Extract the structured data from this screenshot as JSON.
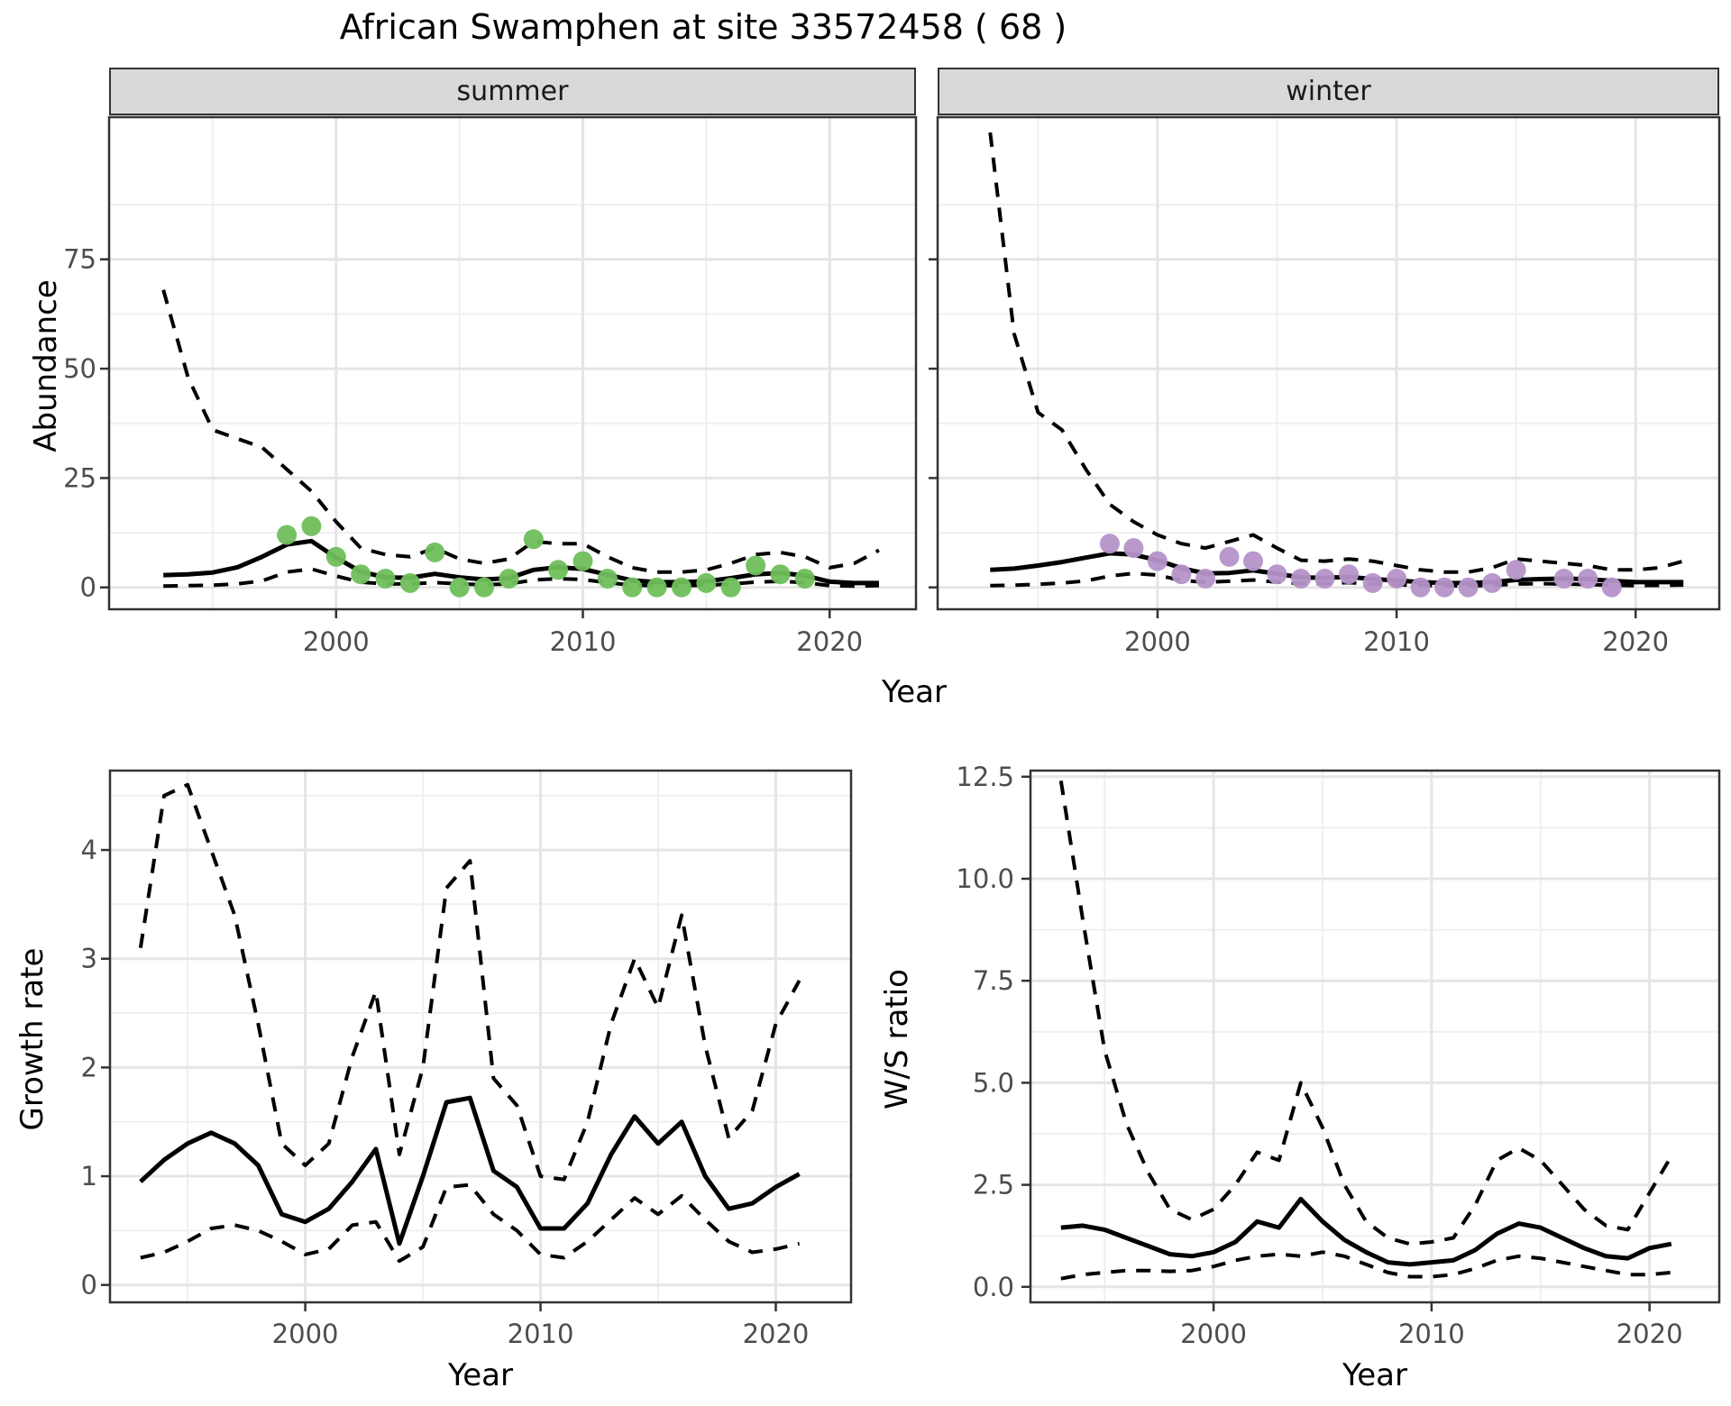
{
  "title": "African Swamphen at site 33572458 ( 68 )",
  "colors": {
    "summer_points": "#6fbf5b",
    "winter_points": "#b594c9",
    "line": "#000000",
    "grid_major": "#e5e5e5",
    "grid_minor": "#efefef",
    "strip_bg": "#d9d9d9",
    "panel_border": "#333333",
    "axis_text": "#4d4d4d"
  },
  "chart_data": [
    {
      "id": "abundance_summer",
      "type": "line",
      "facet_label": "summer",
      "xlabel": "Year",
      "ylabel": "Abundance",
      "xlim": [
        1990.8,
        2023.5
      ],
      "ylim": [
        -5,
        107.5
      ],
      "x_ticks": [
        {
          "v": 2000,
          "label": "2000"
        },
        {
          "v": 2010,
          "label": "2010"
        },
        {
          "v": 2020,
          "label": "2020"
        }
      ],
      "x_minor": [
        1995,
        2005,
        2015
      ],
      "y_ticks": [
        {
          "v": 0,
          "label": "0"
        },
        {
          "v": 25,
          "label": "25"
        },
        {
          "v": 50,
          "label": "50"
        },
        {
          "v": 75,
          "label": "75"
        }
      ],
      "y_minor": [
        12.5,
        37.5,
        62.5,
        87.5
      ],
      "grid": true,
      "legend": "none",
      "x": [
        1993,
        1994,
        1995,
        1996,
        1997,
        1998,
        1999,
        2000,
        2001,
        2002,
        2003,
        2004,
        2005,
        2006,
        2007,
        2008,
        2009,
        2010,
        2011,
        2012,
        2013,
        2014,
        2015,
        2016,
        2017,
        2018,
        2019,
        2020,
        2021,
        2022
      ],
      "series": [
        {
          "name": "median_fit",
          "style": "solid",
          "color": "#000000",
          "values": [
            2.8,
            3.0,
            3.4,
            4.6,
            7.0,
            9.8,
            10.6,
            6.8,
            3.6,
            2.3,
            2.2,
            3.1,
            2.3,
            1.8,
            2.1,
            4.0,
            4.6,
            4.2,
            2.9,
            1.6,
            1.2,
            1.2,
            1.4,
            2.1,
            3.0,
            3.3,
            2.7,
            1.3,
            1.0,
            1.0
          ]
        },
        {
          "name": "upper_ci",
          "style": "dashed",
          "color": "#000000",
          "values": [
            68,
            48,
            36,
            34,
            32,
            27,
            22,
            15,
            9,
            7.5,
            7,
            9,
            6.5,
            5.5,
            6.5,
            10.5,
            10,
            10,
            7,
            4.5,
            3.5,
            3.5,
            4,
            5.5,
            7.5,
            8,
            7,
            4.5,
            5.5,
            8.5
          ]
        },
        {
          "name": "lower_ci",
          "style": "dashed",
          "color": "#000000",
          "values": [
            0.3,
            0.4,
            0.5,
            0.8,
            1.5,
            3.5,
            4.2,
            2.6,
            1.2,
            0.8,
            0.8,
            1.1,
            0.8,
            0.6,
            0.8,
            1.7,
            2.0,
            1.8,
            1.1,
            0.5,
            0.4,
            0.4,
            0.5,
            0.8,
            1.2,
            1.4,
            1.1,
            0.4,
            0.3,
            0.4
          ]
        }
      ],
      "points": {
        "name": "observed_counts_summer",
        "color": "#6fbf5b",
        "x": [
          1998,
          1999,
          2000,
          2001,
          2002,
          2003,
          2004,
          2005,
          2006,
          2007,
          2008,
          2009,
          2010,
          2011,
          2012,
          2013,
          2014,
          2015,
          2016,
          2017,
          2018,
          2019
        ],
        "y": [
          12,
          14,
          7,
          3,
          2,
          1,
          8,
          0,
          0,
          2,
          11,
          4,
          6,
          2,
          0,
          0,
          0,
          1,
          0,
          5,
          3,
          2
        ]
      }
    },
    {
      "id": "abundance_winter",
      "type": "line",
      "facet_label": "winter",
      "xlabel": "Year",
      "ylabel": "Abundance",
      "xlim": [
        1990.8,
        2023.5
      ],
      "ylim": [
        -5,
        107.5
      ],
      "x_ticks": [
        {
          "v": 2000,
          "label": "2000"
        },
        {
          "v": 2010,
          "label": "2010"
        },
        {
          "v": 2020,
          "label": "2020"
        }
      ],
      "x_minor": [
        1995,
        2005,
        2015
      ],
      "y_ticks": [
        {
          "v": 0,
          "label": "0"
        },
        {
          "v": 25,
          "label": "25"
        },
        {
          "v": 50,
          "label": "50"
        },
        {
          "v": 75,
          "label": "75"
        }
      ],
      "y_minor": [
        12.5,
        37.5,
        62.5,
        87.5
      ],
      "grid": true,
      "legend": "none",
      "x": [
        1993,
        1994,
        1995,
        1996,
        1997,
        1998,
        1999,
        2000,
        2001,
        2002,
        2003,
        2004,
        2005,
        2006,
        2007,
        2008,
        2009,
        2010,
        2011,
        2012,
        2013,
        2014,
        2015,
        2016,
        2017,
        2018,
        2019,
        2020,
        2021,
        2022
      ],
      "series": [
        {
          "name": "median_fit",
          "style": "solid",
          "color": "#000000",
          "values": [
            4.0,
            4.3,
            5.0,
            5.8,
            6.8,
            7.8,
            7.5,
            6.2,
            4.4,
            3.2,
            3.3,
            3.9,
            3.1,
            2.3,
            2.2,
            2.4,
            1.9,
            1.6,
            1.2,
            1.0,
            1.0,
            1.2,
            1.7,
            1.9,
            2.0,
            1.9,
            1.5,
            1.2,
            1.2,
            1.2
          ]
        },
        {
          "name": "upper_ci",
          "style": "dashed",
          "color": "#000000",
          "values": [
            104,
            58,
            40,
            36,
            27,
            19,
            15,
            12,
            10,
            9,
            10.5,
            12,
            9,
            6.2,
            6.0,
            6.5,
            6.0,
            5.0,
            4.0,
            3.5,
            3.5,
            4.5,
            6.5,
            6.0,
            5.5,
            5.0,
            4.0,
            4.0,
            4.5,
            6.0
          ]
        },
        {
          "name": "lower_ci",
          "style": "dashed",
          "color": "#000000",
          "values": [
            0.4,
            0.5,
            0.7,
            1.0,
            1.5,
            2.6,
            3.2,
            2.8,
            1.6,
            1.2,
            1.4,
            1.7,
            1.2,
            0.9,
            0.9,
            1.1,
            0.8,
            0.6,
            0.45,
            0.35,
            0.35,
            0.45,
            0.8,
            0.85,
            0.8,
            0.65,
            0.5,
            0.4,
            0.45,
            0.55
          ]
        }
      ],
      "points": {
        "name": "observed_counts_winter",
        "color": "#b594c9",
        "x": [
          1998,
          1999,
          2000,
          2001,
          2002,
          2003,
          2004,
          2005,
          2006,
          2007,
          2008,
          2009,
          2010,
          2011,
          2012,
          2013,
          2014,
          2015,
          2017,
          2018,
          2019
        ],
        "y": [
          10,
          9,
          6,
          3,
          2,
          7,
          6,
          3,
          2,
          2,
          3,
          1,
          2,
          0,
          0,
          0,
          1,
          4,
          2,
          2,
          0
        ]
      }
    },
    {
      "id": "growth_rate",
      "type": "line",
      "facet_label": "",
      "xlabel": "Year",
      "ylabel": "Growth rate",
      "xlim": [
        1991.7,
        2023.2
      ],
      "ylim": [
        -0.16,
        4.73
      ],
      "x_ticks": [
        {
          "v": 2000,
          "label": "2000"
        },
        {
          "v": 2010,
          "label": "2010"
        },
        {
          "v": 2020,
          "label": "2020"
        }
      ],
      "x_minor": [
        1995,
        2005,
        2015
      ],
      "y_ticks": [
        {
          "v": 0,
          "label": "0"
        },
        {
          "v": 1,
          "label": "1"
        },
        {
          "v": 2,
          "label": "2"
        },
        {
          "v": 3,
          "label": "3"
        },
        {
          "v": 4,
          "label": "4"
        }
      ],
      "y_minor": [
        0.5,
        1.5,
        2.5,
        3.5,
        4.5
      ],
      "grid": true,
      "legend": "none",
      "x": [
        1993,
        1994,
        1995,
        1996,
        1997,
        1998,
        1999,
        2000,
        2001,
        2002,
        2003,
        2004,
        2005,
        2006,
        2007,
        2008,
        2009,
        2010,
        2011,
        2012,
        2013,
        2014,
        2015,
        2016,
        2017,
        2018,
        2019,
        2020,
        2021
      ],
      "series": [
        {
          "name": "median_growth",
          "style": "solid",
          "color": "#000000",
          "values": [
            0.95,
            1.15,
            1.3,
            1.4,
            1.3,
            1.1,
            0.65,
            0.58,
            0.7,
            0.95,
            1.25,
            0.38,
            1.0,
            1.68,
            1.72,
            1.05,
            0.9,
            0.52,
            0.52,
            0.75,
            1.2,
            1.55,
            1.3,
            1.5,
            1.0,
            0.7,
            0.75,
            0.9,
            1.02
          ]
        },
        {
          "name": "upper_ci",
          "style": "dashed",
          "color": "#000000",
          "values": [
            3.1,
            4.5,
            4.6,
            4.0,
            3.4,
            2.4,
            1.3,
            1.1,
            1.3,
            2.1,
            2.7,
            1.2,
            2.0,
            3.65,
            3.9,
            1.9,
            1.65,
            1.0,
            0.97,
            1.5,
            2.4,
            3.0,
            2.55,
            3.4,
            2.2,
            1.35,
            1.6,
            2.4,
            2.8
          ]
        },
        {
          "name": "lower_ci",
          "style": "dashed",
          "color": "#000000",
          "values": [
            0.25,
            0.3,
            0.4,
            0.52,
            0.55,
            0.5,
            0.4,
            0.28,
            0.33,
            0.55,
            0.58,
            0.22,
            0.35,
            0.9,
            0.92,
            0.65,
            0.5,
            0.28,
            0.25,
            0.4,
            0.6,
            0.8,
            0.65,
            0.82,
            0.6,
            0.4,
            0.3,
            0.33,
            0.38
          ]
        }
      ]
    },
    {
      "id": "ws_ratio",
      "type": "line",
      "facet_label": "",
      "xlabel": "Year",
      "ylabel": "W/S ratio",
      "xlim": [
        1991.6,
        2023.2
      ],
      "ylim": [
        -0.38,
        12.65
      ],
      "x_ticks": [
        {
          "v": 2000,
          "label": "2000"
        },
        {
          "v": 2010,
          "label": "2010"
        },
        {
          "v": 2020,
          "label": "2020"
        }
      ],
      "x_minor": [
        1995,
        2005,
        2015
      ],
      "y_ticks": [
        {
          "v": 0,
          "label": "0.0"
        },
        {
          "v": 2.5,
          "label": "2.5"
        },
        {
          "v": 5,
          "label": "5.0"
        },
        {
          "v": 7.5,
          "label": "7.5"
        },
        {
          "v": 10,
          "label": "10.0"
        },
        {
          "v": 12.5,
          "label": "12.5"
        }
      ],
      "y_minor": [
        1.25,
        3.75,
        6.25,
        8.75,
        11.25
      ],
      "grid": true,
      "legend": "none",
      "x": [
        1993,
        1994,
        1995,
        1996,
        1997,
        1998,
        1999,
        2000,
        2001,
        2002,
        2003,
        2004,
        2005,
        2006,
        2007,
        2008,
        2009,
        2010,
        2011,
        2012,
        2013,
        2014,
        2015,
        2016,
        2017,
        2018,
        2019,
        2020,
        2021
      ],
      "series": [
        {
          "name": "median_ratio",
          "style": "solid",
          "color": "#000000",
          "values": [
            1.45,
            1.5,
            1.4,
            1.2,
            1.0,
            0.8,
            0.75,
            0.85,
            1.1,
            1.6,
            1.45,
            2.15,
            1.6,
            1.15,
            0.85,
            0.6,
            0.55,
            0.6,
            0.65,
            0.9,
            1.3,
            1.55,
            1.45,
            1.2,
            0.95,
            0.75,
            0.7,
            0.95,
            1.05
          ]
        },
        {
          "name": "upper_ci",
          "style": "dashed",
          "color": "#000000",
          "values": [
            12.4,
            9.0,
            5.8,
            4.0,
            2.8,
            1.9,
            1.65,
            1.9,
            2.5,
            3.3,
            3.1,
            5.0,
            3.9,
            2.5,
            1.6,
            1.2,
            1.05,
            1.1,
            1.2,
            2.0,
            3.1,
            3.4,
            3.1,
            2.5,
            1.9,
            1.5,
            1.4,
            2.3,
            3.2
          ]
        },
        {
          "name": "lower_ci",
          "style": "dashed",
          "color": "#000000",
          "values": [
            0.2,
            0.3,
            0.35,
            0.4,
            0.4,
            0.38,
            0.4,
            0.5,
            0.65,
            0.75,
            0.8,
            0.75,
            0.85,
            0.75,
            0.55,
            0.35,
            0.25,
            0.25,
            0.3,
            0.45,
            0.65,
            0.75,
            0.7,
            0.6,
            0.5,
            0.4,
            0.3,
            0.3,
            0.35
          ]
        }
      ]
    }
  ]
}
